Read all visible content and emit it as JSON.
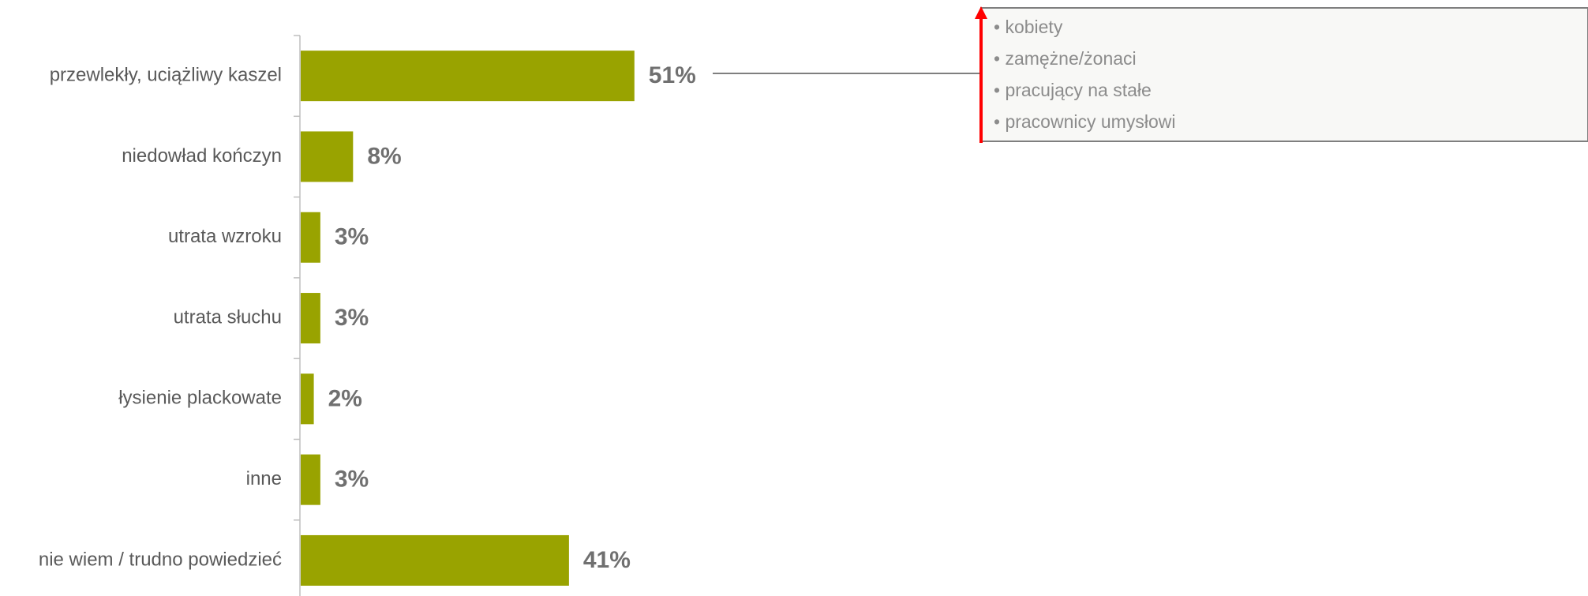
{
  "chart_data": {
    "type": "bar",
    "orientation": "horizontal",
    "categories": [
      "przewlekły, uciążliwy kaszel",
      "niedowład kończyn",
      "utrata wzroku",
      "utrata słuchu",
      "łysienie plackowate",
      "inne",
      "nie wiem / trudno powiedzieć"
    ],
    "values": [
      51,
      8,
      3,
      3,
      2,
      3,
      41
    ],
    "value_labels": [
      "51%",
      "8%",
      "3%",
      "3%",
      "2%",
      "3%",
      "41%"
    ],
    "unit": "%",
    "bar_color": "#99a300",
    "grid": false,
    "legend": "none"
  },
  "annotation": {
    "points_to": "przewlekły, uciążliwy kaszel",
    "arrow_color": "#ff0000",
    "items": [
      "kobiety",
      "zamężne/żonaci",
      "pracujący na stałe",
      "pracownicy umysłowi"
    ]
  }
}
